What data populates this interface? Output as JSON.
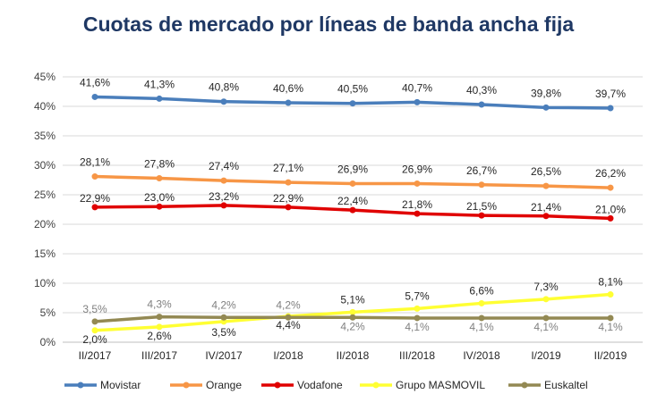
{
  "chart_data": {
    "type": "line",
    "title": "Cuotas de mercado por líneas de banda ancha fija",
    "title_color": "#1f3864",
    "xlabel": "",
    "ylabel": "",
    "ylim": [
      0,
      45
    ],
    "yticks": [
      "0%",
      "5%",
      "10%",
      "15%",
      "20%",
      "25%",
      "30%",
      "35%",
      "40%",
      "45%"
    ],
    "grid": true,
    "legend_position": "bottom",
    "categories": [
      "II/2017",
      "III/2017",
      "IV/2017",
      "I/2018",
      "II/2018",
      "III/2018",
      "IV/2018",
      "I/2019",
      "II/2019"
    ],
    "series": [
      {
        "name": "Movistar",
        "color": "#4a7ebb",
        "values": [
          41.6,
          41.3,
          40.8,
          40.6,
          40.5,
          40.7,
          40.3,
          39.8,
          39.7
        ],
        "labels": [
          "41,6%",
          "41,3%",
          "40,8%",
          "40,6%",
          "40,5%",
          "40,7%",
          "40,3%",
          "39,8%",
          "39,7%"
        ],
        "label_color": "#262626"
      },
      {
        "name": "Orange",
        "color": "#f79646",
        "values": [
          28.1,
          27.8,
          27.4,
          27.1,
          26.9,
          26.9,
          26.7,
          26.5,
          26.2
        ],
        "labels": [
          "28,1%",
          "27,8%",
          "27,4%",
          "27,1%",
          "26,9%",
          "26,9%",
          "26,7%",
          "26,5%",
          "26,2%"
        ],
        "label_color": "#262626"
      },
      {
        "name": "Vodafone",
        "color": "#e00000",
        "values": [
          22.9,
          23.0,
          23.2,
          22.9,
          22.4,
          21.8,
          21.5,
          21.4,
          21.0
        ],
        "labels": [
          "22,9%",
          "23,0%",
          "23,2%",
          "22,9%",
          "22,4%",
          "21,8%",
          "21,5%",
          "21,4%",
          "21,0%"
        ],
        "label_color": "#262626"
      },
      {
        "name": "Grupo MASMOVIL",
        "color": "#ffff33",
        "values": [
          2.0,
          2.6,
          3.5,
          4.4,
          5.1,
          5.7,
          6.6,
          7.3,
          8.1
        ],
        "labels": [
          "2,0%",
          "2,6%",
          "3,5%",
          "4,4%",
          "5,1%",
          "5,7%",
          "6,6%",
          "7,3%",
          "8,1%"
        ],
        "label_color": "#262626"
      },
      {
        "name": "Euskaltel",
        "color": "#938953",
        "values": [
          3.5,
          4.3,
          4.2,
          4.2,
          4.2,
          4.1,
          4.1,
          4.1,
          4.1
        ],
        "labels": [
          "3,5%",
          "4,3%",
          "4,2%",
          "4,2%",
          "4,2%",
          "4,1%",
          "4,1%",
          "4,1%",
          "4,1%"
        ],
        "label_color": "#7f7f7f"
      }
    ]
  }
}
